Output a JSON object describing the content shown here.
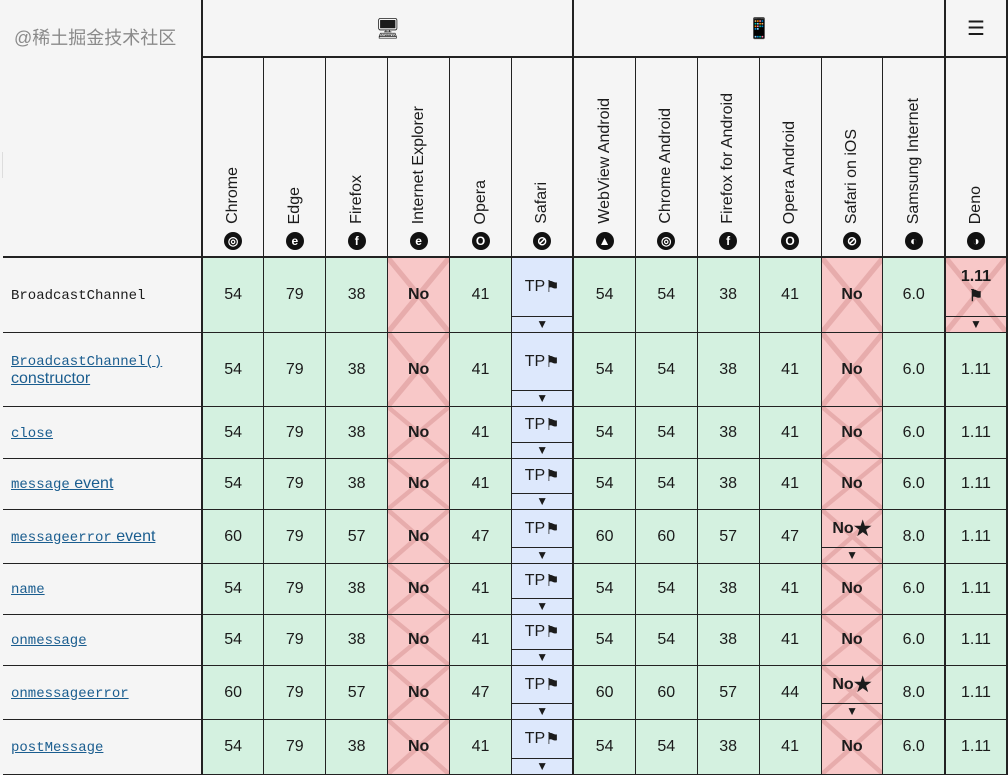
{
  "platforms": [
    {
      "name": "desktop",
      "icon": "desktop-icon",
      "glyph": "🖥",
      "span": 6
    },
    {
      "name": "mobile",
      "icon": "mobile-icon",
      "glyph": "📱",
      "span": 6
    },
    {
      "name": "server",
      "icon": "server-icon",
      "glyph": "☰",
      "span": 1
    }
  ],
  "browsers": [
    {
      "name": "Chrome",
      "icon": "chrome-icon",
      "glyph": "◎"
    },
    {
      "name": "Edge",
      "icon": "edge-icon",
      "glyph": "e"
    },
    {
      "name": "Firefox",
      "icon": "firefox-icon",
      "glyph": "f"
    },
    {
      "name": "Internet Explorer",
      "icon": "ie-icon",
      "glyph": "e"
    },
    {
      "name": "Opera",
      "icon": "opera-icon",
      "glyph": "O"
    },
    {
      "name": "Safari",
      "icon": "safari-icon",
      "glyph": "⊘"
    },
    {
      "name": "WebView Android",
      "icon": "android-icon",
      "glyph": "▲"
    },
    {
      "name": "Chrome Android",
      "icon": "chrome-icon",
      "glyph": "◎"
    },
    {
      "name": "Firefox for Android",
      "icon": "firefox-icon",
      "glyph": "f"
    },
    {
      "name": "Opera Android",
      "icon": "opera-icon",
      "glyph": "O"
    },
    {
      "name": "Safari on iOS",
      "icon": "safari-icon",
      "glyph": "⊘"
    },
    {
      "name": "Samsung Internet",
      "icon": "samsung-icon",
      "glyph": "◐"
    },
    {
      "name": "Deno",
      "icon": "deno-icon",
      "glyph": "◑"
    }
  ],
  "colors": {
    "yes": "#d4f1e0",
    "no": "#f8c8c8",
    "preview": "#dde8fc"
  },
  "rows": [
    {
      "feature": "BroadcastChannel",
      "suffix": "",
      "link": false,
      "cells": [
        "54",
        "79",
        "38",
        "No",
        "41",
        "TP",
        "54",
        "54",
        "38",
        "41",
        "No",
        "6.0",
        "1.11"
      ],
      "status": [
        "y",
        "y",
        "y",
        "n",
        "y",
        "p",
        "y",
        "y",
        "y",
        "y",
        "n",
        "y",
        "n"
      ],
      "flag": [
        5,
        12
      ],
      "toggle": [
        5,
        12
      ],
      "star": []
    },
    {
      "feature": "BroadcastChannel()",
      "suffix": "constructor",
      "link": true,
      "cells": [
        "54",
        "79",
        "38",
        "No",
        "41",
        "TP",
        "54",
        "54",
        "38",
        "41",
        "No",
        "6.0",
        "1.11"
      ],
      "status": [
        "y",
        "y",
        "y",
        "n",
        "y",
        "p",
        "y",
        "y",
        "y",
        "y",
        "n",
        "y",
        "y"
      ],
      "flag": [
        5
      ],
      "toggle": [
        5
      ],
      "star": []
    },
    {
      "feature": "close",
      "suffix": "",
      "link": true,
      "cells": [
        "54",
        "79",
        "38",
        "No",
        "41",
        "TP",
        "54",
        "54",
        "38",
        "41",
        "No",
        "6.0",
        "1.11"
      ],
      "status": [
        "y",
        "y",
        "y",
        "n",
        "y",
        "p",
        "y",
        "y",
        "y",
        "y",
        "n",
        "y",
        "y"
      ],
      "flag": [
        5
      ],
      "toggle": [
        5
      ],
      "star": []
    },
    {
      "feature": "message",
      "suffix": " event",
      "link": true,
      "cells": [
        "54",
        "79",
        "38",
        "No",
        "41",
        "TP",
        "54",
        "54",
        "38",
        "41",
        "No",
        "6.0",
        "1.11"
      ],
      "status": [
        "y",
        "y",
        "y",
        "n",
        "y",
        "p",
        "y",
        "y",
        "y",
        "y",
        "n",
        "y",
        "y"
      ],
      "flag": [
        5
      ],
      "toggle": [
        5
      ],
      "star": []
    },
    {
      "feature": "messageerror",
      "suffix": " event",
      "link": true,
      "cells": [
        "60",
        "79",
        "57",
        "No",
        "47",
        "TP",
        "60",
        "60",
        "57",
        "47",
        "No",
        "8.0",
        "1.11"
      ],
      "status": [
        "y",
        "y",
        "y",
        "n",
        "y",
        "p",
        "y",
        "y",
        "y",
        "y",
        "n",
        "y",
        "y"
      ],
      "flag": [
        5
      ],
      "toggle": [
        5,
        10
      ],
      "star": [
        10
      ]
    },
    {
      "feature": "name",
      "suffix": "",
      "link": true,
      "cells": [
        "54",
        "79",
        "38",
        "No",
        "41",
        "TP",
        "54",
        "54",
        "38",
        "41",
        "No",
        "6.0",
        "1.11"
      ],
      "status": [
        "y",
        "y",
        "y",
        "n",
        "y",
        "p",
        "y",
        "y",
        "y",
        "y",
        "n",
        "y",
        "y"
      ],
      "flag": [
        5
      ],
      "toggle": [
        5
      ],
      "star": []
    },
    {
      "feature": "onmessage",
      "suffix": "",
      "link": true,
      "cells": [
        "54",
        "79",
        "38",
        "No",
        "41",
        "TP",
        "54",
        "54",
        "38",
        "41",
        "No",
        "6.0",
        "1.11"
      ],
      "status": [
        "y",
        "y",
        "y",
        "n",
        "y",
        "p",
        "y",
        "y",
        "y",
        "y",
        "n",
        "y",
        "y"
      ],
      "flag": [
        5
      ],
      "toggle": [
        5
      ],
      "star": []
    },
    {
      "feature": "onmessageerror",
      "suffix": "",
      "link": true,
      "cells": [
        "60",
        "79",
        "57",
        "No",
        "47",
        "TP",
        "60",
        "60",
        "57",
        "44",
        "No",
        "8.0",
        "1.11"
      ],
      "status": [
        "y",
        "y",
        "y",
        "n",
        "y",
        "p",
        "y",
        "y",
        "y",
        "y",
        "n",
        "y",
        "y"
      ],
      "flag": [
        5
      ],
      "toggle": [
        5,
        10
      ],
      "star": [
        10
      ]
    },
    {
      "feature": "postMessage",
      "suffix": "",
      "link": true,
      "cells": [
        "54",
        "79",
        "38",
        "No",
        "41",
        "TP",
        "54",
        "54",
        "38",
        "41",
        "No",
        "6.0",
        "1.11"
      ],
      "status": [
        "y",
        "y",
        "y",
        "n",
        "y",
        "p",
        "y",
        "y",
        "y",
        "y",
        "n",
        "y",
        "y"
      ],
      "flag": [
        5
      ],
      "toggle": [
        5
      ],
      "star": []
    }
  ],
  "watermark": "@稀土掘金技术社区"
}
